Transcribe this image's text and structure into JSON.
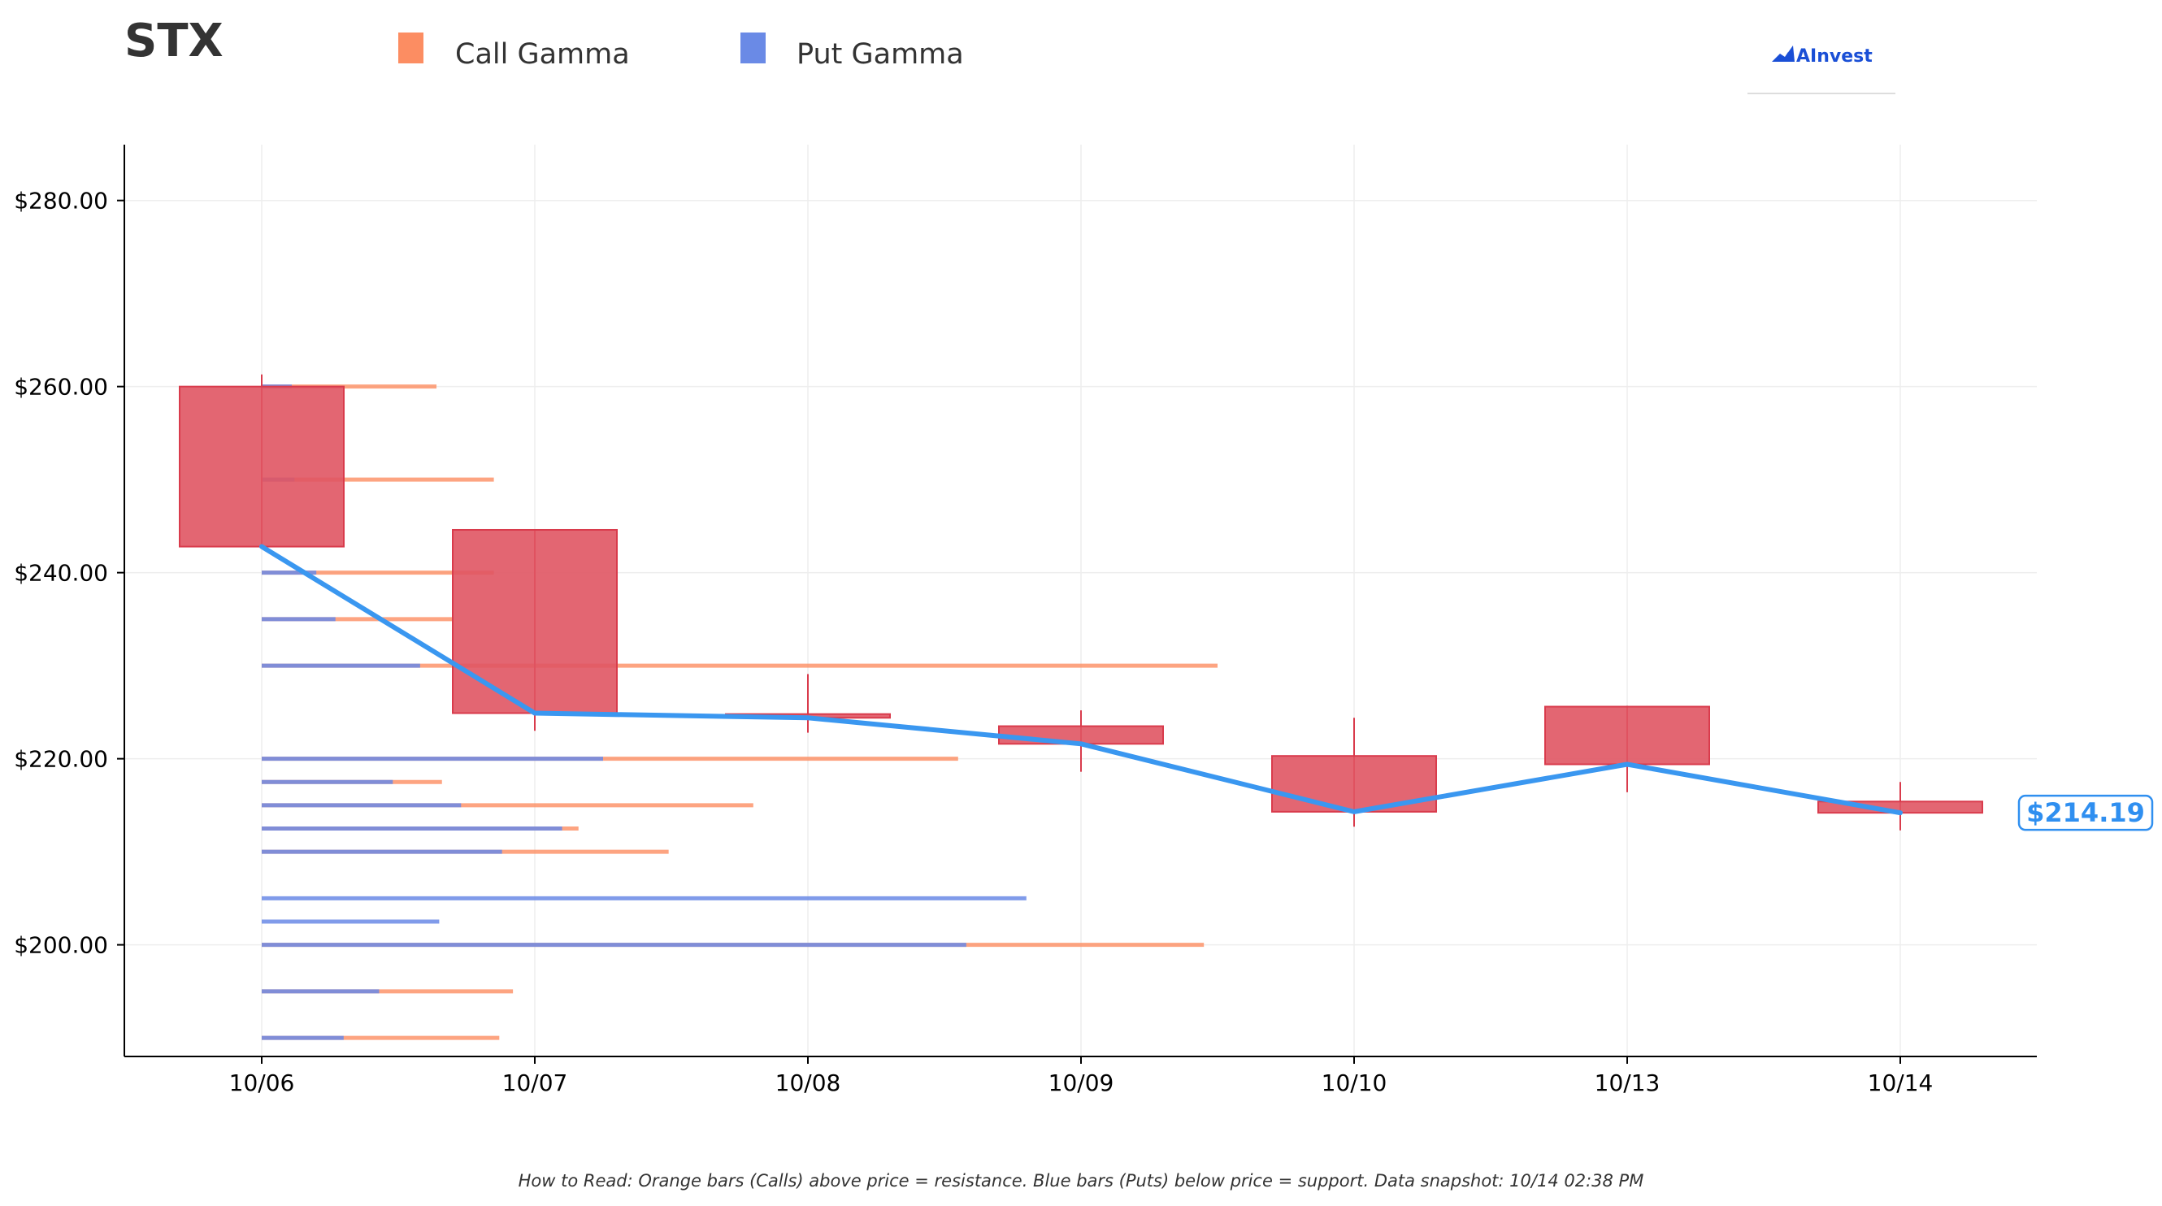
{
  "header": {
    "ticker": "STX",
    "logo_text": "AInvest"
  },
  "colors": {
    "call": "#fc8d62",
    "put": "#6a8ae6",
    "candle_fill": "#e05563",
    "candle_edge": "#d93b4c",
    "price_line": "#3a97f0",
    "price_label": "#2f8ff0"
  },
  "footnote": "How to Read: Orange bars (Calls) above price = resistance. Blue bars (Puts) below price = support. Data snapshot: 10/14 02:38 PM",
  "chart_data": {
    "type": "candlestick",
    "categories": [
      "10/06",
      "10/07",
      "10/08",
      "10/09",
      "10/10",
      "10/13",
      "10/14"
    ],
    "ylim": [
      188,
      286
    ],
    "yticks": [
      200,
      220,
      240,
      260,
      280
    ],
    "ytick_labels": [
      "$200.00",
      "$220.00",
      "$240.00",
      "$260.00",
      "$280.00"
    ],
    "grid": true,
    "legend": {
      "placement": "top",
      "entries": [
        {
          "label": "Call Gamma",
          "color": "#fc8d62"
        },
        {
          "label": "Put Gamma",
          "color": "#6a8ae6"
        }
      ]
    },
    "candles": [
      {
        "date": "10/06",
        "open": 260.0,
        "high": 261.3,
        "low": 242.6,
        "close": 242.8
      },
      {
        "date": "10/07",
        "open": 244.6,
        "high": 244.6,
        "low": 223.0,
        "close": 224.9
      },
      {
        "date": "10/08",
        "open": 224.8,
        "high": 229.1,
        "low": 222.8,
        "close": 224.4
      },
      {
        "date": "10/09",
        "open": 223.5,
        "high": 225.2,
        "low": 218.6,
        "close": 221.6
      },
      {
        "date": "10/10",
        "open": 220.3,
        "high": 224.4,
        "low": 212.7,
        "close": 214.3
      },
      {
        "date": "10/13",
        "open": 225.6,
        "high": 225.7,
        "low": 216.4,
        "close": 219.4
      },
      {
        "date": "10/14",
        "open": 215.4,
        "high": 217.5,
        "low": 212.3,
        "close": 214.19
      }
    ],
    "price_line": {
      "x": [
        "10/06",
        "10/07",
        "10/08",
        "10/09",
        "10/10",
        "10/13",
        "10/14"
      ],
      "y": [
        242.8,
        224.9,
        224.4,
        221.6,
        214.3,
        219.4,
        214.19
      ]
    },
    "current_price": 214.19,
    "current_price_label": "$214.19",
    "gamma_bars": {
      "units": "category-span from 10/06",
      "levels": [
        {
          "strike": 260,
          "call": 0.64,
          "put": 0.11
        },
        {
          "strike": 250,
          "call": 0.85,
          "put": 0.12
        },
        {
          "strike": 240,
          "call": 0.85,
          "put": 0.2
        },
        {
          "strike": 235,
          "call": 0.7,
          "put": 0.27
        },
        {
          "strike": 230,
          "call": 3.5,
          "put": 0.58
        },
        {
          "strike": 220,
          "call": 2.55,
          "put": 1.25
        },
        {
          "strike": 217.5,
          "call": 0.66,
          "put": 0.48
        },
        {
          "strike": 215,
          "call": 1.8,
          "put": 0.73
        },
        {
          "strike": 212.5,
          "call": 1.16,
          "put": 1.1
        },
        {
          "strike": 210,
          "call": 1.49,
          "put": 0.88
        },
        {
          "strike": 205,
          "call": 0.0,
          "put": 2.8
        },
        {
          "strike": 202.5,
          "call": 0.0,
          "put": 0.65
        },
        {
          "strike": 200,
          "call": 3.45,
          "put": 2.58
        },
        {
          "strike": 195,
          "call": 0.92,
          "put": 0.43
        },
        {
          "strike": 190,
          "call": 0.87,
          "put": 0.3
        }
      ]
    }
  }
}
